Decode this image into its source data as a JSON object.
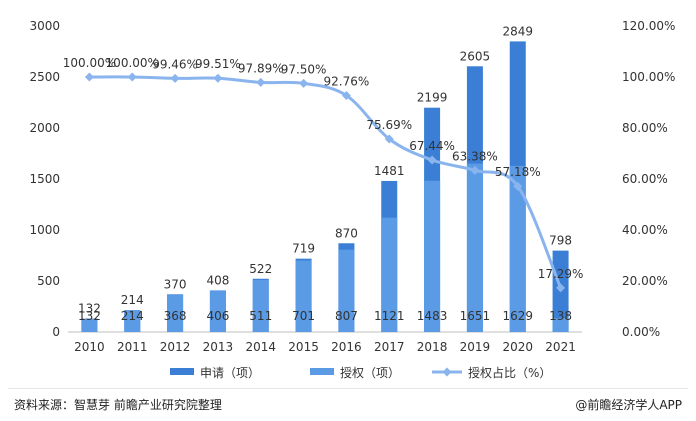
{
  "chart_data": {
    "type": "bar",
    "categories": [
      "2010",
      "2011",
      "2012",
      "2013",
      "2014",
      "2015",
      "2016",
      "2017",
      "2018",
      "2019",
      "2020",
      "2021"
    ],
    "series": [
      {
        "name": "申请（项）",
        "type": "bar",
        "axis": "left",
        "color": "#3a7fd5",
        "values": [
          132,
          214,
          370,
          408,
          522,
          719,
          870,
          1481,
          2199,
          2605,
          2849,
          798
        ]
      },
      {
        "name": "授权（项）",
        "type": "bar",
        "axis": "left",
        "color": "#5b9be6",
        "values": [
          132,
          214,
          368,
          406,
          511,
          701,
          807,
          1121,
          1483,
          1651,
          1629,
          138
        ]
      },
      {
        "name": "授权占比（%）",
        "type": "line",
        "axis": "right",
        "color": "#8ab4ee",
        "values": [
          100.0,
          100.0,
          99.46,
          99.51,
          97.89,
          97.5,
          92.76,
          75.69,
          67.44,
          63.38,
          57.18,
          17.29
        ]
      }
    ],
    "labels": {
      "applied": [
        "132",
        "214",
        "370",
        "408",
        "522",
        "719",
        "870",
        "1481",
        "2199",
        "2605",
        "2849",
        "798"
      ],
      "granted": [
        "132",
        "214",
        "368",
        "406",
        "511",
        "701",
        "807",
        "1121",
        "1483",
        "1651",
        "1629",
        "138"
      ],
      "ratio": [
        "100.00%",
        "100.00%",
        "99.46%",
        "99.51%",
        "97.89%",
        "97.50%",
        "92.76%",
        "75.69%",
        "67.44%",
        "63.38%",
        "57.18%",
        "17.29%"
      ]
    },
    "y_left": {
      "min": 0,
      "max": 3000,
      "ticks": [
        0,
        500,
        1000,
        1500,
        2000,
        2500,
        3000
      ]
    },
    "y_right": {
      "min": 0,
      "max": 120,
      "tick_labels": [
        "0.00%",
        "20.00%",
        "40.00%",
        "60.00%",
        "80.00%",
        "100.00%",
        "120.00%"
      ]
    },
    "grid": false,
    "legend_position": "bottom-center"
  },
  "footer": {
    "source": "资料来源：智慧芽 前瞻产业研究院整理",
    "brand": "@前瞻经济学人APP"
  }
}
